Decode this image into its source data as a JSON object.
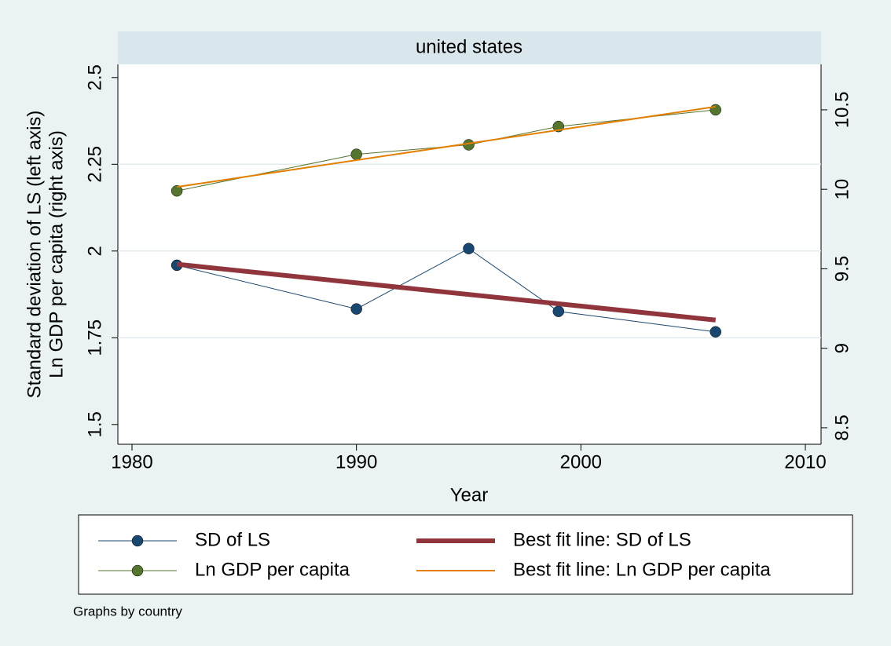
{
  "chart_data": {
    "type": "line",
    "subtitle": "united states",
    "ylabel": [
      "Standard deviation of LS (left axis)",
      "Ln GDP per capita (right axis)"
    ],
    "xlabel": "Year",
    "note": "Graphs by country",
    "xlim": [
      1979.37,
      2010.7
    ],
    "xticks": [
      1980,
      1990,
      2000,
      2010
    ],
    "ylim": [
      1.443,
      2.538
    ],
    "yticks": [
      1.5,
      1.75,
      2,
      2.25,
      2.5
    ],
    "y2lim": [
      8.396,
      10.786
    ],
    "y2ticks": [
      8.5,
      9,
      9.5,
      10,
      10.5
    ],
    "grid": true,
    "series": [
      {
        "name": "SD of LS",
        "color": "#1a476f",
        "markers": true,
        "width": 1,
        "x": [
          1982,
          1990,
          1995,
          1999,
          2006
        ],
        "values": [
          1.959,
          1.833,
          2.007,
          1.826,
          1.767
        ]
      },
      {
        "name": "Best fit line: SD of LS",
        "color": "#90353b",
        "markers": false,
        "width": 6,
        "x": [
          1982,
          2006
        ],
        "values": [
          1.962,
          1.801
        ]
      },
      {
        "name": "Ln GDP per capita",
        "color": "#55752f",
        "markers": true,
        "width": 1,
        "axis": "y2",
        "x": [
          1982,
          1990,
          1995,
          1999,
          2006
        ],
        "values": [
          9.99,
          10.22,
          10.28,
          10.395,
          10.5
        ]
      },
      {
        "name": "Best fit line: Ln GDP per capita",
        "color": "#e37e00",
        "markers": false,
        "width": 2,
        "axis": "y2",
        "x": [
          1982,
          2006
        ],
        "values": [
          10.015,
          10.52
        ]
      }
    ]
  }
}
